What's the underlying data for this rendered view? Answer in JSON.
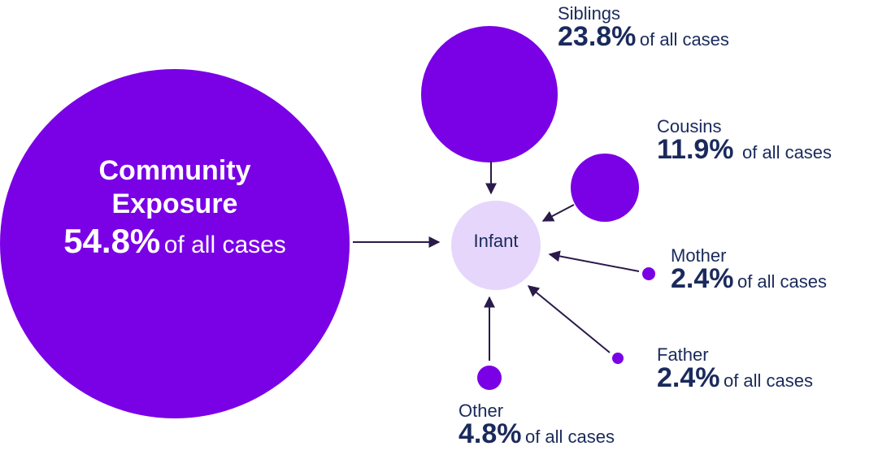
{
  "colors": {
    "source_node": "#7a00e6",
    "infant_node": "#e6d6fb",
    "arrow": "#2a1a4a",
    "label_text": "#1a2a5c",
    "community_text": "#ffffff"
  },
  "center": {
    "label": "Infant"
  },
  "community": {
    "title_line1": "Community",
    "title_line2": "Exposure",
    "value": "54.8%",
    "suffix": "of all cases"
  },
  "sources": {
    "siblings": {
      "name": "Siblings",
      "value": "23.8%",
      "suffix": "of all cases"
    },
    "cousins": {
      "name": "Cousins",
      "value": "11.9%",
      "suffix": "of all cases"
    },
    "mother": {
      "name": "Mother",
      "value": "2.4%",
      "suffix": "of all cases"
    },
    "father": {
      "name": "Father",
      "value": "2.4%",
      "suffix": "of all cases"
    },
    "other": {
      "name": "Other",
      "value": "4.8%",
      "suffix": "of all cases"
    }
  }
}
